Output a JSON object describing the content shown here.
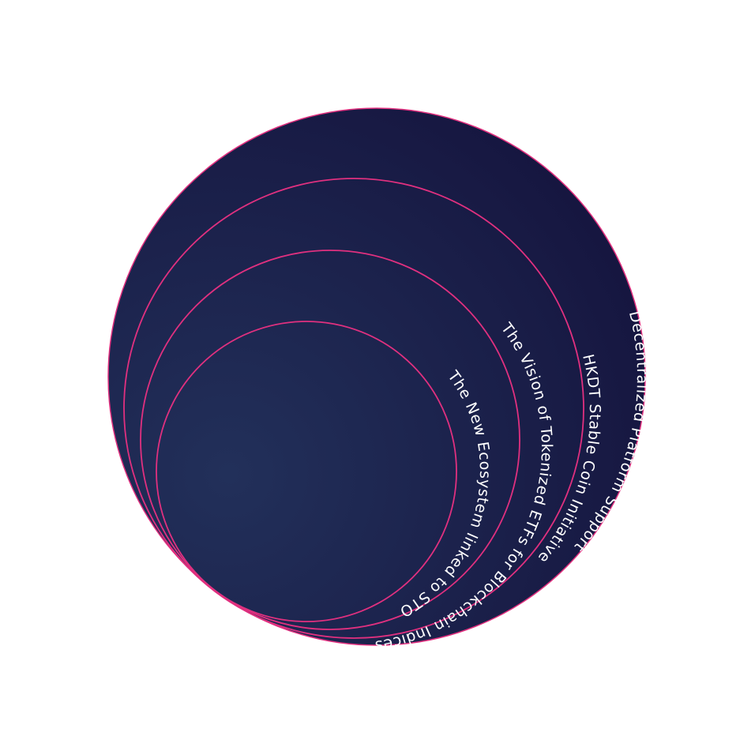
{
  "diagram": {
    "colors": {
      "background": "#ffffff",
      "fill_outer": "#161640",
      "fill_center": "#22305a",
      "ring_stroke": "#e0307f"
    },
    "rings": [
      {
        "id": "outer",
        "label": "Decentralized Platform Support"
      },
      {
        "id": "second",
        "label": "HKDT Stable Coin Initiative"
      },
      {
        "id": "third",
        "label": "The Vision of Tokenized ETFs for Blockchain Indices"
      },
      {
        "id": "inner",
        "label": "The New Ecosystem linked to STO"
      }
    ]
  }
}
